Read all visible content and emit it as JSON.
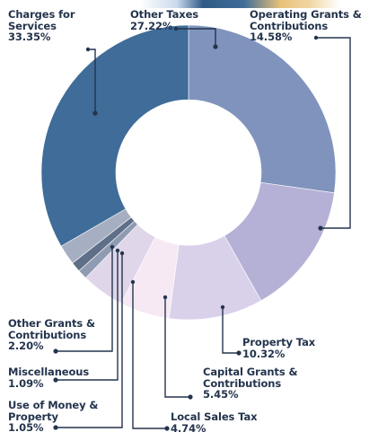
{
  "chart_data": {
    "type": "pie",
    "variant": "donut",
    "title": "",
    "labels": [
      "Other Taxes",
      "Operating Grants & Contributions",
      "Property Tax",
      "Capital Grants & Contributions",
      "Local Sales Tax",
      "Use of Money & Property",
      "Miscellaneous",
      "Other Grants & Contributions",
      "Charges for Services"
    ],
    "values": [
      27.22,
      14.58,
      10.32,
      5.45,
      4.74,
      1.05,
      1.09,
      2.2,
      33.35
    ],
    "value_labels": [
      "27.22%",
      "14.58%",
      "10.32%",
      "5.45%",
      "4.74%",
      "1.05%",
      "1.09%",
      "2.20%",
      "33.35%"
    ],
    "colors": [
      "#7f93bd",
      "#b5b1d6",
      "#d9d1ea",
      "#f6e9f3",
      "#dfd6e9",
      "#8e9bb2",
      "#5e6f87",
      "#a6afc2",
      "#3f6c99"
    ],
    "label_color": "#24344d",
    "start_angle_deg": 0,
    "direction": "clockwise"
  }
}
